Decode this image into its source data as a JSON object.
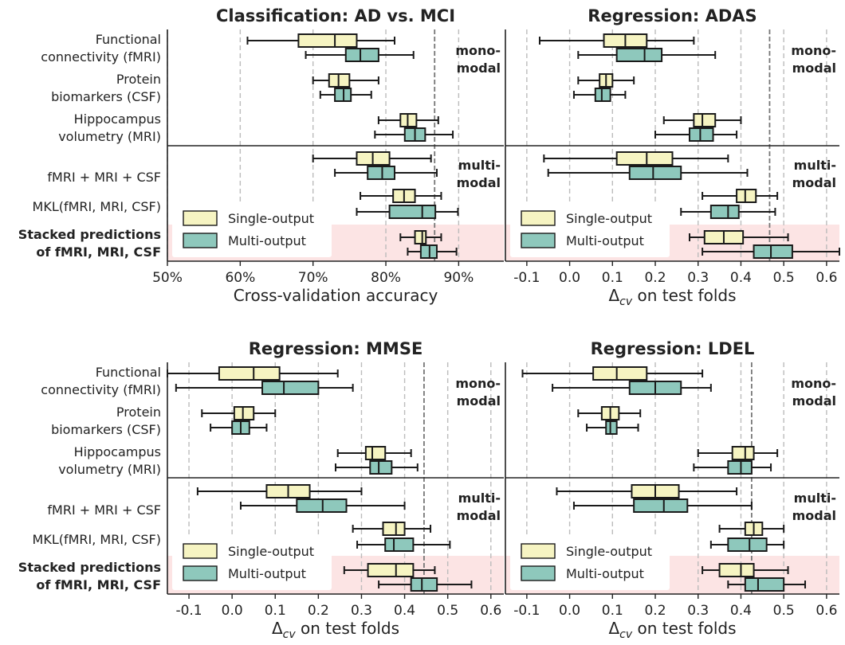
{
  "chart_data": [
    {
      "type": "boxplot",
      "title": "Classification: AD vs. MCI",
      "xlabel": "Cross-validation accuracy",
      "xlim": [
        0.5,
        0.962
      ],
      "xticks": [
        0.5,
        0.6,
        0.7,
        0.8,
        0.9
      ],
      "xticklabels": [
        "50%",
        "60%",
        "70%",
        "80%",
        "90%"
      ],
      "reference_line": 0.867,
      "category_labels": [
        [
          "Functional",
          "connectivity (fMRI)"
        ],
        [
          "Protein",
          "biomarkers (CSF)"
        ],
        [
          "Hippocampus",
          "volumetry (MRI)"
        ],
        [
          "fMRI + MRI + CSF"
        ],
        [
          "MKL(fMRI, MRI, CSF)"
        ],
        [
          "Stacked predictions",
          "of fMRI, MRI, CSF"
        ]
      ],
      "group_annotations": [
        [
          "mono-",
          "modal"
        ],
        [
          "multi-",
          "modal"
        ]
      ],
      "legend": [
        "Single-output",
        "Multi-output"
      ],
      "series": [
        {
          "name": "Single-output",
          "boxes": [
            [
              0.61,
              0.68,
              0.73,
              0.76,
              0.812
            ],
            [
              0.7,
              0.722,
              0.735,
              0.75,
              0.79
            ],
            [
              0.79,
              0.82,
              0.83,
              0.842,
              0.872
            ],
            [
              0.7,
              0.76,
              0.782,
              0.805,
              0.862
            ],
            [
              0.765,
              0.81,
              0.825,
              0.84,
              0.876
            ],
            [
              0.82,
              0.84,
              0.85,
              0.855,
              0.876
            ]
          ]
        },
        {
          "name": "Multi-output",
          "boxes": [
            [
              0.69,
              0.745,
              0.765,
              0.79,
              0.838
            ],
            [
              0.71,
              0.73,
              0.742,
              0.752,
              0.78
            ],
            [
              0.785,
              0.826,
              0.84,
              0.854,
              0.892
            ],
            [
              0.73,
              0.775,
              0.795,
              0.812,
              0.87
            ],
            [
              0.76,
              0.805,
              0.85,
              0.868,
              0.899
            ],
            [
              0.83,
              0.848,
              0.86,
              0.87,
              0.897
            ]
          ]
        }
      ]
    },
    {
      "type": "boxplot",
      "title": "Regression: ADAS",
      "xlabel": "Δcv on test folds",
      "xlim": [
        -0.15,
        0.63
      ],
      "xticks": [
        -0.1,
        0.0,
        0.1,
        0.2,
        0.3,
        0.4,
        0.5,
        0.6
      ],
      "xticklabels": [
        "-0.1",
        "0.0",
        "0.1",
        "0.2",
        "0.3",
        "0.4",
        "0.5",
        "0.6"
      ],
      "reference_line": 0.467,
      "group_annotations": [
        [
          "mono-",
          "modal"
        ],
        [
          "multi-",
          "modal"
        ]
      ],
      "legend": [
        "Single-output",
        "Multi-output"
      ],
      "series": [
        {
          "name": "Single-output",
          "boxes": [
            [
              -0.07,
              0.08,
              0.13,
              0.18,
              0.29
            ],
            [
              0.02,
              0.07,
              0.085,
              0.1,
              0.15
            ],
            [
              0.22,
              0.29,
              0.31,
              0.34,
              0.4
            ],
            [
              -0.06,
              0.11,
              0.18,
              0.24,
              0.37
            ],
            [
              0.31,
              0.39,
              0.41,
              0.435,
              0.485
            ],
            [
              0.28,
              0.315,
              0.36,
              0.405,
              0.51
            ]
          ]
        },
        {
          "name": "Multi-output",
          "boxes": [
            [
              0.02,
              0.11,
              0.175,
              0.215,
              0.34
            ],
            [
              0.01,
              0.06,
              0.075,
              0.095,
              0.13
            ],
            [
              0.2,
              0.28,
              0.305,
              0.335,
              0.39
            ],
            [
              -0.05,
              0.14,
              0.195,
              0.26,
              0.415
            ],
            [
              0.26,
              0.33,
              0.37,
              0.395,
              0.48
            ],
            [
              0.31,
              0.43,
              0.47,
              0.52,
              0.63
            ]
          ]
        }
      ]
    },
    {
      "type": "boxplot",
      "title": "Regression: MMSE",
      "xlabel": "Δcv on test folds",
      "xlim": [
        -0.15,
        0.63
      ],
      "xticks": [
        -0.1,
        0.0,
        0.1,
        0.2,
        0.3,
        0.4,
        0.5,
        0.6
      ],
      "xticklabels": [
        "-0.1",
        "0.0",
        "0.1",
        "0.2",
        "0.3",
        "0.4",
        "0.5",
        "0.6"
      ],
      "reference_line": 0.445,
      "category_labels": [
        [
          "Functional",
          "connectivity (fMRI)"
        ],
        [
          "Protein",
          "biomarkers (CSF)"
        ],
        [
          "Hippocampus",
          "volumetry (MRI)"
        ],
        [
          "fMRI + MRI + CSF"
        ],
        [
          "MKL(fMRI, MRI, CSF)"
        ],
        [
          "Stacked predictions",
          "of fMRI, MRI, CSF"
        ]
      ],
      "group_annotations": [
        [
          "mono-",
          "modal"
        ],
        [
          "multi-",
          "modal"
        ]
      ],
      "legend": [
        "Single-output",
        "Multi-output"
      ],
      "series": [
        {
          "name": "Single-output",
          "boxes": [
            [
              -0.15,
              -0.03,
              0.05,
              0.11,
              0.245
            ],
            [
              -0.07,
              0.005,
              0.025,
              0.05,
              0.1
            ],
            [
              0.245,
              0.31,
              0.325,
              0.355,
              0.415
            ],
            [
              -0.08,
              0.08,
              0.13,
              0.18,
              0.3
            ],
            [
              0.28,
              0.35,
              0.38,
              0.4,
              0.46
            ],
            [
              0.26,
              0.315,
              0.38,
              0.42,
              0.47
            ]
          ]
        },
        {
          "name": "Multi-output",
          "boxes": [
            [
              -0.13,
              0.07,
              0.12,
              0.2,
              0.28
            ],
            [
              -0.05,
              0.0,
              0.02,
              0.04,
              0.08
            ],
            [
              0.24,
              0.32,
              0.34,
              0.37,
              0.43
            ],
            [
              0.02,
              0.15,
              0.21,
              0.265,
              0.4
            ],
            [
              0.29,
              0.355,
              0.375,
              0.42,
              0.505
            ],
            [
              0.34,
              0.415,
              0.44,
              0.475,
              0.555
            ]
          ]
        }
      ]
    },
    {
      "type": "boxplot",
      "title": "Regression: LDEL",
      "xlabel": "Δcv on test folds",
      "xlim": [
        -0.15,
        0.63
      ],
      "xticks": [
        -0.1,
        0.0,
        0.1,
        0.2,
        0.3,
        0.4,
        0.5,
        0.6
      ],
      "xticklabels": [
        "-0.1",
        "0.0",
        "0.1",
        "0.2",
        "0.3",
        "0.4",
        "0.5",
        "0.6"
      ],
      "reference_line": 0.425,
      "group_annotations": [
        [
          "mono-",
          "modal"
        ],
        [
          "multi-",
          "modal"
        ]
      ],
      "legend": [
        "Single-output",
        "Multi-output"
      ],
      "series": [
        {
          "name": "Single-output",
          "boxes": [
            [
              -0.11,
              0.055,
              0.11,
              0.18,
              0.31
            ],
            [
              0.02,
              0.075,
              0.095,
              0.115,
              0.165
            ],
            [
              0.3,
              0.38,
              0.41,
              0.43,
              0.485
            ],
            [
              -0.03,
              0.145,
              0.2,
              0.255,
              0.39
            ],
            [
              0.35,
              0.41,
              0.43,
              0.45,
              0.5
            ],
            [
              0.31,
              0.35,
              0.4,
              0.43,
              0.51
            ]
          ]
        },
        {
          "name": "Multi-output",
          "boxes": [
            [
              -0.04,
              0.14,
              0.2,
              0.26,
              0.33
            ],
            [
              0.04,
              0.085,
              0.095,
              0.11,
              0.16
            ],
            [
              0.29,
              0.37,
              0.4,
              0.425,
              0.47
            ],
            [
              0.01,
              0.15,
              0.22,
              0.275,
              0.425
            ],
            [
              0.33,
              0.37,
              0.42,
              0.46,
              0.5
            ],
            [
              0.37,
              0.41,
              0.44,
              0.5,
              0.55
            ]
          ]
        }
      ]
    }
  ],
  "colors": {
    "single_output": "#f6f4c2",
    "multi_output": "#8ec8bc",
    "stacked_highlight": "#fce4e4",
    "grid": "#bcbcbc",
    "reference_line": "#777777",
    "edge": "#1a1a1a"
  }
}
